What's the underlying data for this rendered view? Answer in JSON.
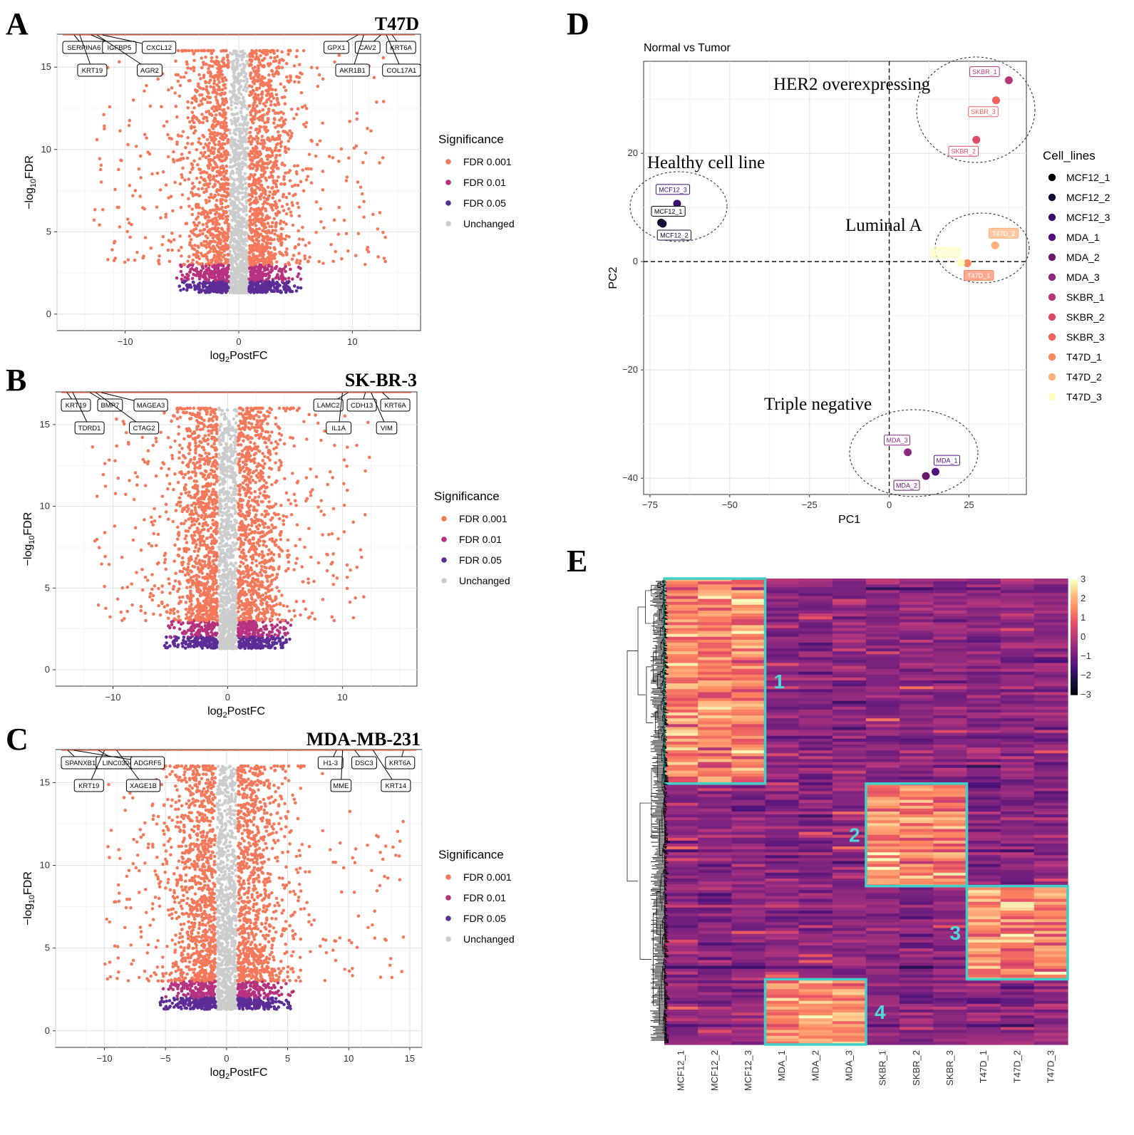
{
  "panels": {
    "A": "A",
    "B": "B",
    "C": "C",
    "D": "D",
    "E": "E"
  },
  "chart_data": [
    {
      "id": "A",
      "type": "scatter",
      "subtype": "volcano",
      "title": "T47D",
      "xlabel": "log2PostFC",
      "ylabel": "-log10FDR",
      "xlim": [
        -16,
        16
      ],
      "ylim": [
        -1,
        17
      ],
      "xticks": [
        -10,
        0,
        10
      ],
      "yticks": [
        0,
        5,
        10,
        15
      ],
      "max_y_reached": 16,
      "spread": {
        "x_range": [
          -13,
          13
        ],
        "core_half_width": 5.5
      },
      "labeled_genes": [
        {
          "name": "SERPINA6",
          "x": -14.5,
          "y": 16.2
        },
        {
          "name": "IGFBP5",
          "x": -13,
          "y": 16.2
        },
        {
          "name": "CXCL12",
          "x": -12,
          "y": 16.2
        },
        {
          "name": "KRT19",
          "x": -14,
          "y": 16.2
        },
        {
          "name": "AGR2",
          "x": -12.5,
          "y": 16.2
        },
        {
          "name": "GPX1",
          "x": 10.5,
          "y": 16.2
        },
        {
          "name": "CAV2",
          "x": 12.5,
          "y": 16.2
        },
        {
          "name": "KRT6A",
          "x": 13.5,
          "y": 16.2
        },
        {
          "name": "AKR1B1",
          "x": 11,
          "y": 16.2
        },
        {
          "name": "COL17A1",
          "x": 13,
          "y": 16.2
        }
      ],
      "legend_title": "Significance",
      "legend": [
        {
          "label": "FDR 0.001",
          "color": "#f4795b"
        },
        {
          "label": "FDR 0.01",
          "color": "#b7327e"
        },
        {
          "label": "FDR 0.05",
          "color": "#5c2c97"
        },
        {
          "label": "Unchanged",
          "color": "#cccccc"
        }
      ]
    },
    {
      "id": "B",
      "type": "scatter",
      "subtype": "volcano",
      "title": "SK-BR-3",
      "xlabel": "log2PostFC",
      "ylabel": "-log10FDR",
      "xlim": [
        -15,
        16.5
      ],
      "ylim": [
        -1,
        17
      ],
      "xticks": [
        -10,
        0,
        10
      ],
      "yticks": [
        0,
        5,
        10,
        15
      ],
      "max_y_reached": 16,
      "spread": {
        "x_range": [
          -12,
          12.5
        ],
        "core_half_width": 5.5
      },
      "labeled_genes": [
        {
          "name": "KRT19",
          "x": -14,
          "y": 16.2
        },
        {
          "name": "BMP7",
          "x": -12,
          "y": 16.2
        },
        {
          "name": "MAGEA3",
          "x": -11,
          "y": 16.2
        },
        {
          "name": "TDRD1",
          "x": -13.5,
          "y": 16.2
        },
        {
          "name": "CTAG2",
          "x": -11.5,
          "y": 16.2
        },
        {
          "name": "LAMC2",
          "x": 10.5,
          "y": 16.2
        },
        {
          "name": "CDH13",
          "x": 12,
          "y": 16.2
        },
        {
          "name": "KRT6A",
          "x": 13.5,
          "y": 16.2
        },
        {
          "name": "IL1A",
          "x": 10,
          "y": 16.2
        },
        {
          "name": "VIM",
          "x": 12.5,
          "y": 16.2
        }
      ],
      "legend_title": "Significance",
      "legend": [
        {
          "label": "FDR 0.001",
          "color": "#f4795b"
        },
        {
          "label": "FDR 0.01",
          "color": "#b7327e"
        },
        {
          "label": "FDR 0.05",
          "color": "#5c2c97"
        },
        {
          "label": "Unchanged",
          "color": "#cccccc"
        }
      ]
    },
    {
      "id": "C",
      "type": "scatter",
      "subtype": "volcano",
      "title": "MDA-MB-231",
      "xlabel": "log2PostFC",
      "ylabel": "-log10FDR",
      "xlim": [
        -14,
        16
      ],
      "ylim": [
        -1,
        17
      ],
      "xticks": [
        -10,
        -5,
        0,
        5,
        10,
        15
      ],
      "yticks": [
        0,
        5,
        10,
        15
      ],
      "max_y_reached": 16,
      "spread": {
        "x_range": [
          -10,
          14.5
        ],
        "core_half_width": 5.5
      },
      "labeled_genes": [
        {
          "name": "SPANXB1",
          "x": -13,
          "y": 16.2
        },
        {
          "name": "LINC03040",
          "x": -10.5,
          "y": 16.2
        },
        {
          "name": "ADGRF5",
          "x": -12.5,
          "y": 16.2
        },
        {
          "name": "KRT19",
          "x": -10,
          "y": 16.2
        },
        {
          "name": "XAGE1B",
          "x": -9,
          "y": 16.2
        },
        {
          "name": "H1-3",
          "x": 9,
          "y": 16.2
        },
        {
          "name": "DSC3",
          "x": 10.5,
          "y": 16.2
        },
        {
          "name": "KRT6A",
          "x": 14.5,
          "y": 16.2
        },
        {
          "name": "MME",
          "x": 9.5,
          "y": 16.2
        },
        {
          "name": "KRT14",
          "x": 12,
          "y": 16.2
        }
      ],
      "legend_title": "Significance",
      "legend": [
        {
          "label": "FDR 0.001",
          "color": "#f4795b"
        },
        {
          "label": "FDR 0.01",
          "color": "#b7327e"
        },
        {
          "label": "FDR 0.05",
          "color": "#5c2c97"
        },
        {
          "label": "Unchanged",
          "color": "#cccccc"
        }
      ]
    },
    {
      "id": "D",
      "type": "scatter",
      "subtype": "pca",
      "title": "Normal vs Tumor",
      "xlabel": "PC1",
      "ylabel": "PC2",
      "xlim": [
        -77,
        43
      ],
      "ylim": [
        -43,
        37
      ],
      "xticks": [
        -75,
        -50,
        -25,
        0,
        25
      ],
      "yticks": [
        -40,
        -20,
        0,
        20
      ],
      "points": [
        {
          "label": "MCF12_1",
          "x": -71.5,
          "y": 7.2,
          "color": "#000004"
        },
        {
          "label": "MCF12_2",
          "x": -71.0,
          "y": 7.0,
          "color": "#140e36"
        },
        {
          "label": "MCF12_3",
          "x": -66.5,
          "y": 10.7,
          "color": "#3b0f70"
        },
        {
          "label": "MDA_1",
          "x": 14.5,
          "y": -38.8,
          "color": "#51127c"
        },
        {
          "label": "MDA_2",
          "x": 11.5,
          "y": -39.6,
          "color": "#6a176e"
        },
        {
          "label": "MDA_3",
          "x": 5.8,
          "y": -35.2,
          "color": "#8c2981"
        },
        {
          "label": "SKBR_1",
          "x": 37.5,
          "y": 33.5,
          "color": "#b73779"
        },
        {
          "label": "SKBR_2",
          "x": 27.3,
          "y": 22.5,
          "color": "#de4968"
        },
        {
          "label": "SKBR_3",
          "x": 33.5,
          "y": 29.8,
          "color": "#f1605d"
        },
        {
          "label": "T47D_1",
          "x": 24.5,
          "y": -0.3,
          "color": "#fb8861"
        },
        {
          "label": "T47D_2",
          "x": 33.2,
          "y": 3.0,
          "color": "#feb078"
        },
        {
          "label": "T47D_3",
          "x": 22.5,
          "y": -0.2,
          "color": "#fcfdbf"
        }
      ],
      "point_labels": [
        {
          "label": "MCF12_3",
          "text": "MCF12_3"
        },
        {
          "label": "MCF12_1",
          "text": "MCF12_1"
        },
        {
          "label": "MCF12_2",
          "text": "MCF12_2"
        },
        {
          "label": "SKBR_1",
          "text": "SKBR_1"
        },
        {
          "label": "SKBR_3",
          "text": "SKBR_3"
        },
        {
          "label": "SKBR_2",
          "text": "SKBR_2"
        },
        {
          "label": "T47D_2",
          "text": "T47D_2"
        },
        {
          "label": "T47D_1",
          "text": "T47D_1"
        },
        {
          "label": "T47D_3",
          "text": "T47D_3"
        },
        {
          "label": "MDA_3",
          "text": "MDA_3"
        },
        {
          "label": "MDA_1",
          "text": "MDA_1"
        },
        {
          "label": "MDA_2",
          "text": "MDA_2"
        }
      ],
      "annotations": [
        "HER2 overexpressing",
        "Healthy cell line",
        "Luminal A",
        "Triple negative"
      ],
      "legend_title": "Cell_lines",
      "legend": [
        {
          "label": "MCF12_1",
          "color": "#000004"
        },
        {
          "label": "MCF12_2",
          "color": "#140e36"
        },
        {
          "label": "MCF12_3",
          "color": "#3b0f70"
        },
        {
          "label": "MDA_1",
          "color": "#51127c"
        },
        {
          "label": "MDA_2",
          "color": "#6a176e"
        },
        {
          "label": "MDA_3",
          "color": "#8c2981"
        },
        {
          "label": "SKBR_1",
          "color": "#b73779"
        },
        {
          "label": "SKBR_2",
          "color": "#de4968"
        },
        {
          "label": "SKBR_3",
          "color": "#f1605d"
        },
        {
          "label": "T47D_1",
          "color": "#fb8861"
        },
        {
          "label": "T47D_2",
          "color": "#feb078"
        },
        {
          "label": "T47D_3",
          "color": "#fcfdbf"
        }
      ]
    },
    {
      "id": "E",
      "type": "heatmap",
      "columns": [
        "MCF12_1",
        "MCF12_2",
        "MCF12_3",
        "MDA_1",
        "MDA_2",
        "MDA_3",
        "SKBR_1",
        "SKBR_2",
        "SKBR_3",
        "T47D_1",
        "T47D_2",
        "T47D_3"
      ],
      "colorbar": {
        "min": -3,
        "max": 3,
        "ticks": [
          3,
          2,
          1,
          0,
          -1,
          -2,
          -3
        ]
      },
      "gene_block_fractions": [
        0.44,
        0.22,
        0.2,
        0.14
      ],
      "clusters": [
        {
          "label": "1",
          "columns": [
            0,
            2
          ],
          "rows_fraction": [
            0.0,
            0.44
          ]
        },
        {
          "label": "2",
          "columns": [
            6,
            8
          ],
          "rows_fraction": [
            0.44,
            0.66
          ]
        },
        {
          "label": "3",
          "columns": [
            9,
            11
          ],
          "rows_fraction": [
            0.66,
            0.86
          ]
        },
        {
          "label": "4",
          "columns": [
            3,
            5
          ],
          "rows_fraction": [
            0.86,
            1.0
          ]
        }
      ],
      "cluster_box_color": "#3fd1c8"
    }
  ]
}
